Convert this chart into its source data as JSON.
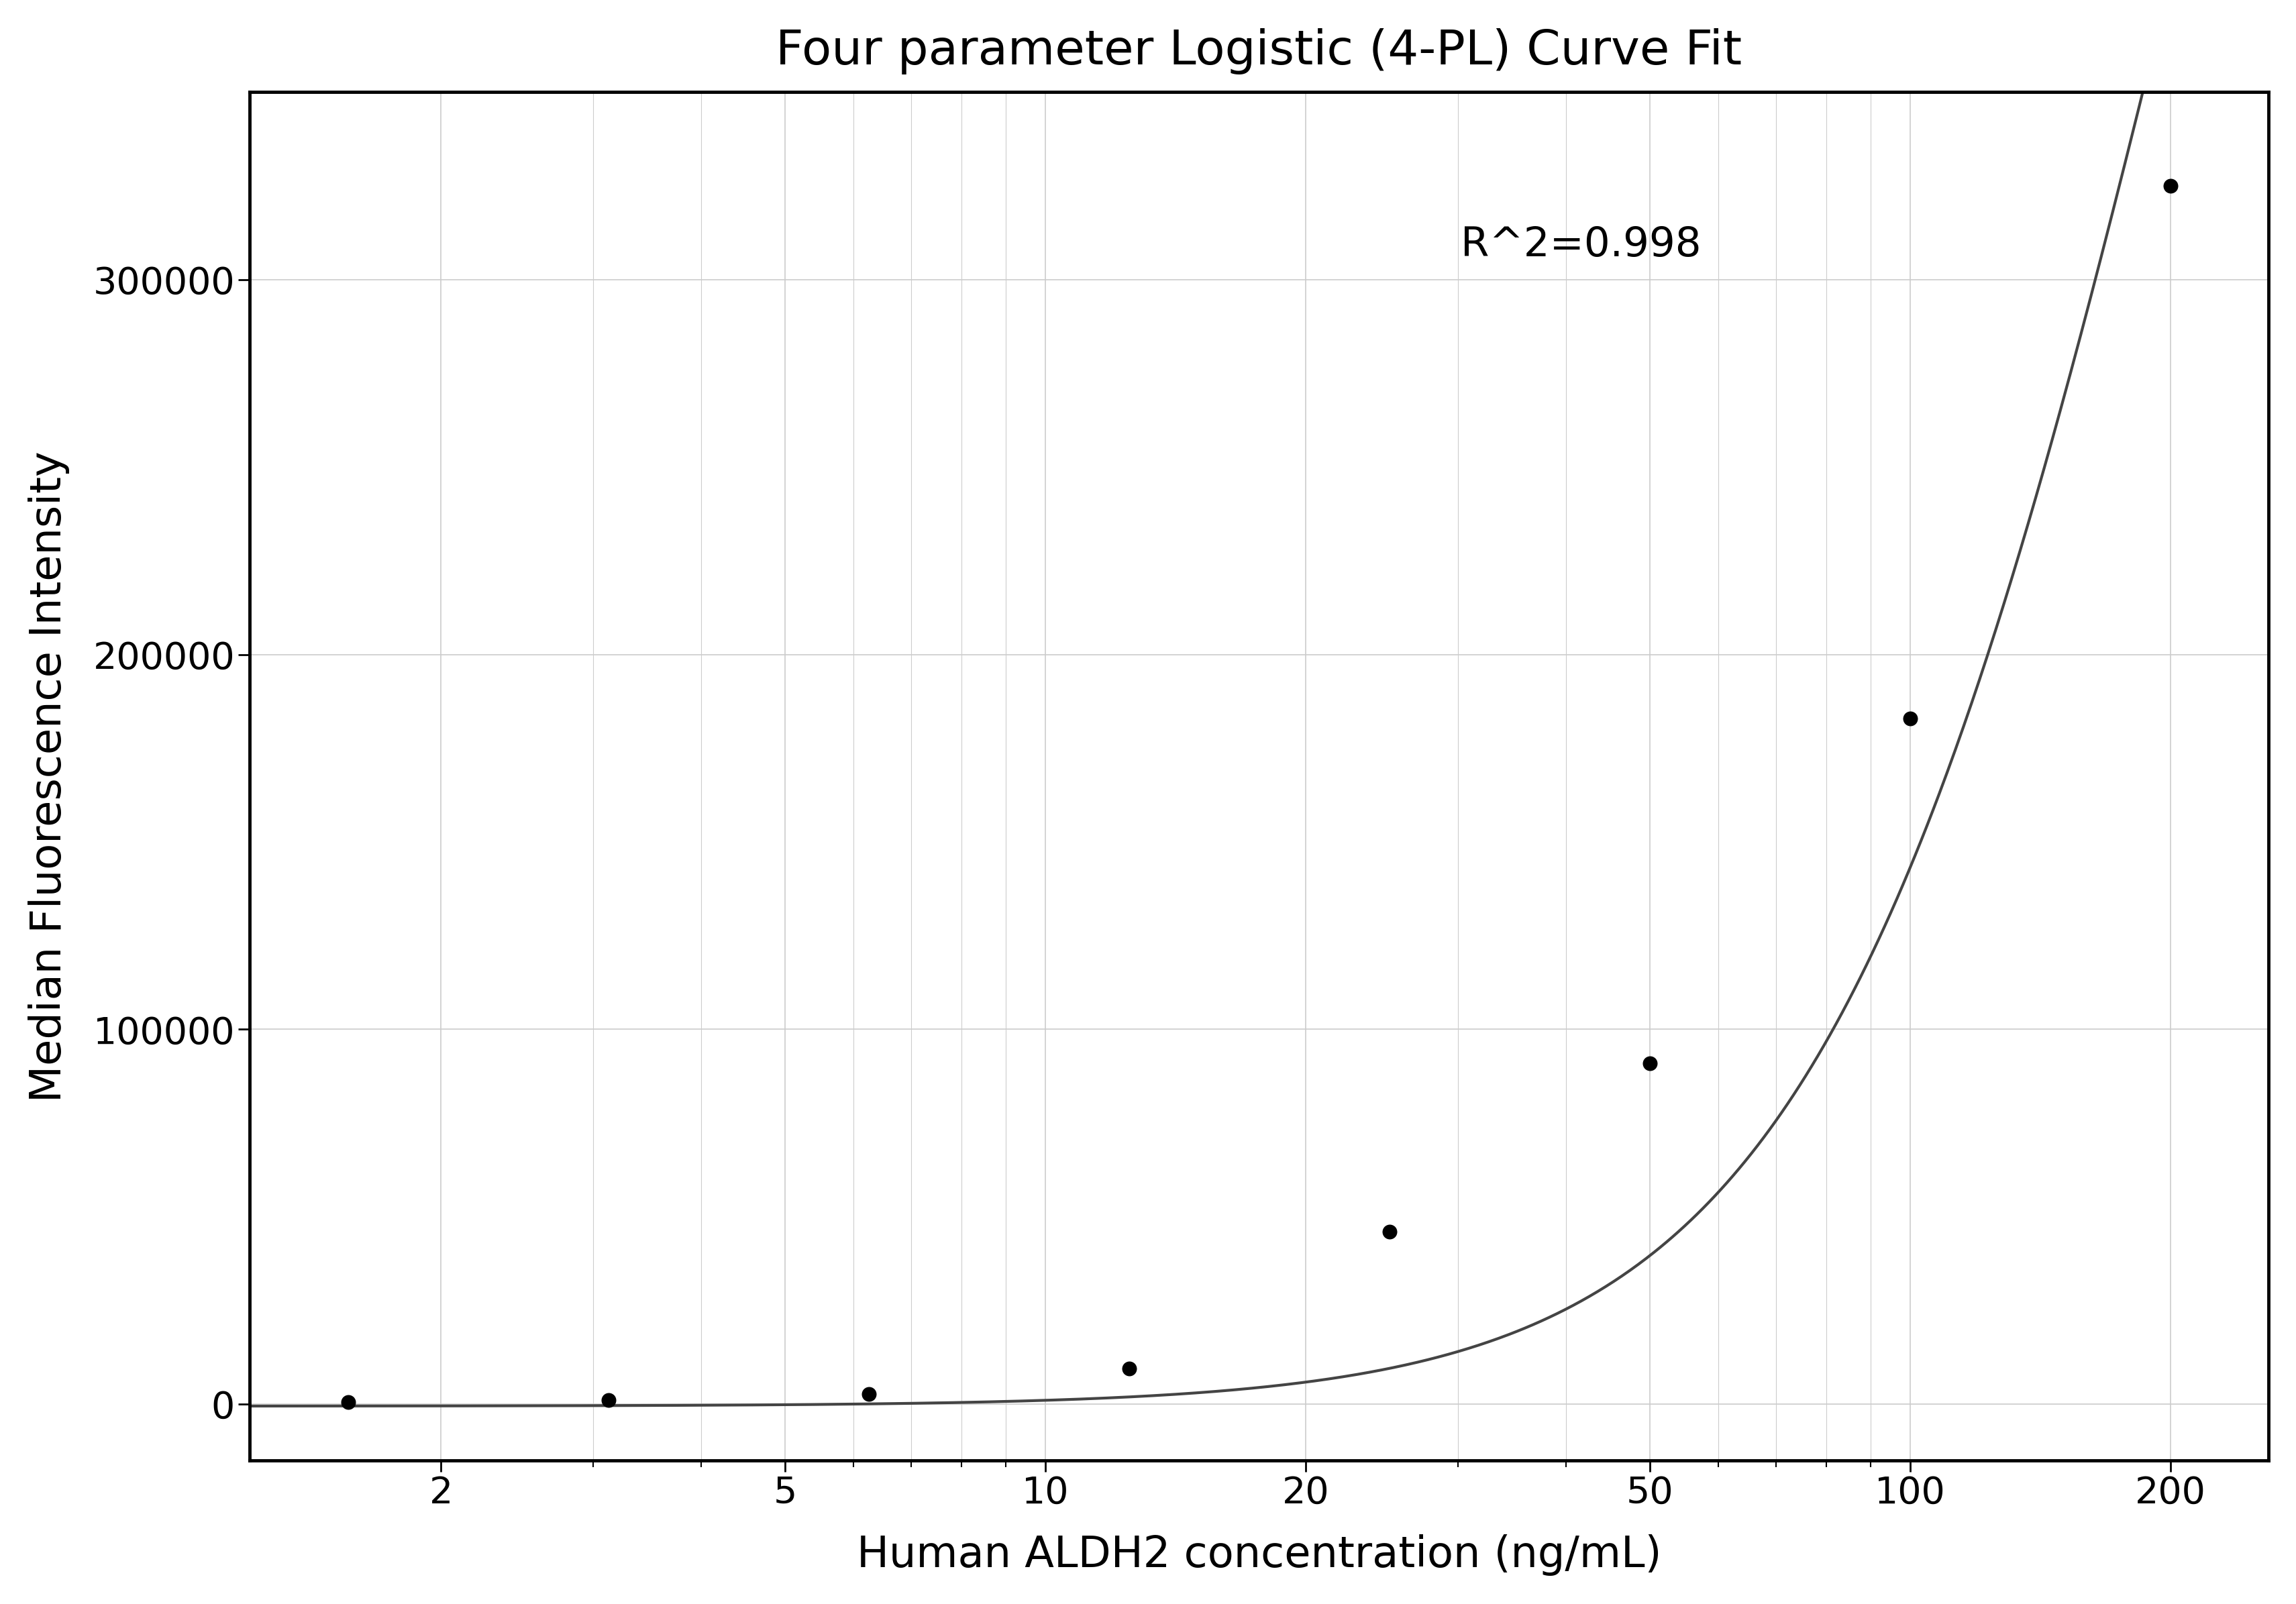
{
  "title": "Four parameter Logistic (4-PL) Curve Fit",
  "xlabel": "Human ALDH2 concentration (ng/mL)",
  "ylabel": "Median Fluorescence Intensity",
  "annotation": "R^2=0.998",
  "scatter_x": [
    1.5625,
    3.125,
    6.25,
    12.5,
    25,
    50,
    100,
    200
  ],
  "scatter_y": [
    500,
    1200,
    2800,
    9500,
    46000,
    91000,
    183000,
    325000
  ],
  "xlim_log": [
    1.2,
    260
  ],
  "ylim": [
    -15000,
    350000
  ],
  "yticks": [
    0,
    100000,
    200000,
    300000
  ],
  "xticks": [
    2,
    5,
    10,
    20,
    50,
    100,
    200
  ],
  "4pl_A": -500,
  "4pl_B": 2.05,
  "4pl_C": 210,
  "4pl_D": 800000,
  "curve_color": "#444444",
  "scatter_color": "#000000",
  "grid_color": "#cccccc",
  "background_color": "#ffffff",
  "title_fontsize": 52,
  "label_fontsize": 46,
  "tick_fontsize": 40,
  "annotation_fontsize": 44,
  "scatter_size": 220,
  "linewidth": 3.0,
  "spine_linewidth": 3.5
}
